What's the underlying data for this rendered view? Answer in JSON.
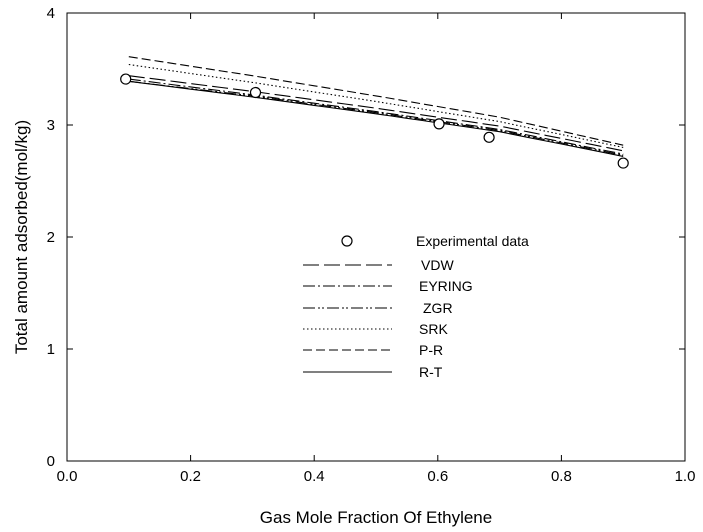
{
  "chart_data": {
    "type": "line",
    "title": "",
    "xlabel": "Gas Mole Fraction Of Ethylene",
    "ylabel": "Total amount adsorbed(mol/kg)",
    "xlim": [
      0.0,
      1.0
    ],
    "ylim": [
      0,
      4
    ],
    "x_ticks": [
      "0.0",
      "0.2",
      "0.4",
      "0.6",
      "0.8",
      "1.0"
    ],
    "y_ticks": [
      "0",
      "1",
      "2",
      "3",
      "4"
    ],
    "grid": false,
    "legend_position": "center",
    "experimental": {
      "name": "Experimental data",
      "marker": "open-circle",
      "x": [
        0.095,
        0.305,
        0.602,
        0.683,
        0.9
      ],
      "y": [
        3.41,
        3.29,
        3.01,
        2.89,
        2.66
      ]
    },
    "series": [
      {
        "name": "VDW",
        "dash": "long-dash",
        "x": [
          0.1,
          0.3,
          0.5,
          0.7,
          0.9
        ],
        "y": [
          3.44,
          3.3,
          3.15,
          2.99,
          2.77
        ]
      },
      {
        "name": "EYRING",
        "dash": "dash-dot",
        "x": [
          0.1,
          0.3,
          0.5,
          0.7,
          0.9
        ],
        "y": [
          3.41,
          3.27,
          3.12,
          2.96,
          2.74
        ]
      },
      {
        "name": "ZGR",
        "dash": "dash-dot-dot",
        "x": [
          0.1,
          0.3,
          0.5,
          0.7,
          0.9
        ],
        "y": [
          3.39,
          3.26,
          3.11,
          2.95,
          2.73
        ]
      },
      {
        "name": "SRK",
        "dash": "dotted",
        "x": [
          0.1,
          0.3,
          0.5,
          0.7,
          0.9
        ],
        "y": [
          3.54,
          3.38,
          3.21,
          3.03,
          2.8
        ]
      },
      {
        "name": "P-R",
        "dash": "dashed",
        "x": [
          0.1,
          0.3,
          0.5,
          0.7,
          0.9
        ],
        "y": [
          3.61,
          3.44,
          3.26,
          3.07,
          2.82
        ]
      },
      {
        "name": "R-T",
        "dash": "solid",
        "x": [
          0.1,
          0.3,
          0.5,
          0.7,
          0.9
        ],
        "y": [
          3.39,
          3.25,
          3.1,
          2.94,
          2.72
        ]
      }
    ],
    "legend": {
      "entries": [
        {
          "label": "Experimental data",
          "symbol": "open-circle"
        },
        {
          "label": "VDW",
          "symbol": "long-dash"
        },
        {
          "label": "EYRING",
          "symbol": "dash-dot"
        },
        {
          "label": "ZGR",
          "symbol": "dash-dot-dot"
        },
        {
          "label": "SRK",
          "symbol": "dotted"
        },
        {
          "label": "P-R",
          "symbol": "dashed"
        },
        {
          "label": "R-T",
          "symbol": "solid"
        }
      ]
    },
    "colors": {
      "line": "#000000",
      "background": "#ffffff"
    }
  }
}
